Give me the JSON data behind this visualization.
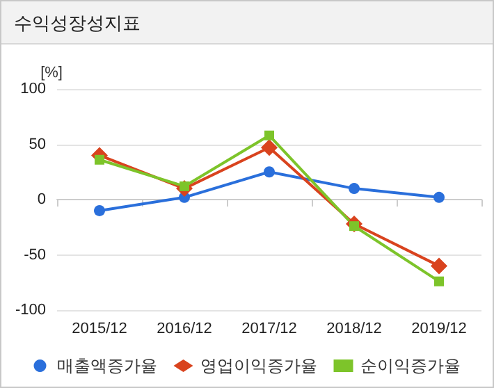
{
  "chart_data": {
    "type": "line",
    "title": "수익성장성지표",
    "ylabel": "[%]",
    "categories": [
      "2015/12",
      "2016/12",
      "2017/12",
      "2018/12",
      "2019/12"
    ],
    "series": [
      {
        "name": "매출액증가율",
        "color": "#2a6fdb",
        "marker": "circle",
        "values": [
          -10,
          2,
          25,
          10,
          2
        ]
      },
      {
        "name": "영업이익증가율",
        "color": "#d9431e",
        "marker": "diamond",
        "values": [
          40,
          10,
          47,
          -22,
          -60
        ]
      },
      {
        "name": "순이익증가율",
        "color": "#7dc42a",
        "marker": "square",
        "values": [
          36,
          12,
          58,
          -24,
          -74
        ]
      }
    ],
    "ylim": [
      -100,
      100
    ],
    "yticks": [
      -100,
      -50,
      0,
      50,
      100
    ],
    "grid": "y",
    "legend": "bottom"
  }
}
